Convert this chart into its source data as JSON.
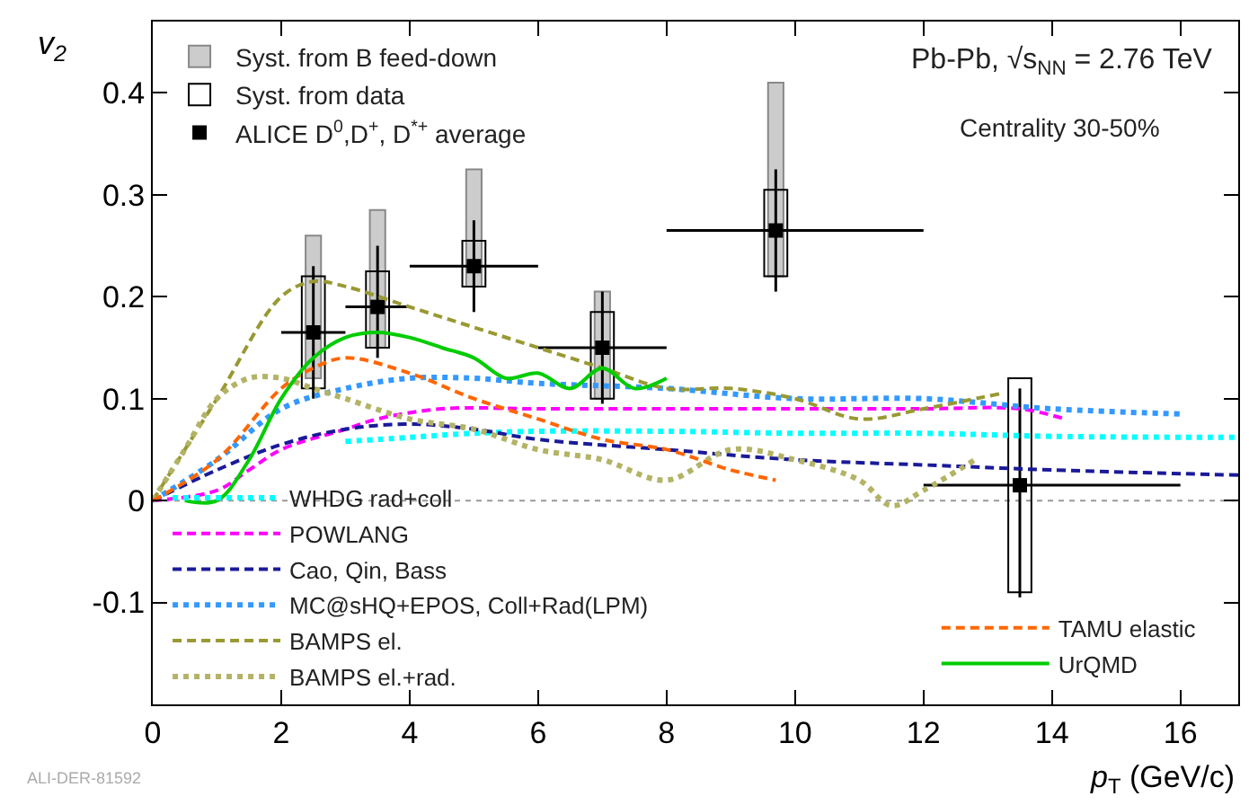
{
  "chart_data": {
    "type": "line",
    "xlabel": "p$_{T}$ (GeV/c)",
    "ylabel": "v$_{2}$",
    "xlim": [
      0,
      16.9
    ],
    "xticks": [
      0,
      2,
      4,
      6,
      8,
      10,
      12,
      14,
      16
    ],
    "ylim": [
      -0.2,
      0.47
    ],
    "yticks": [
      -0.1,
      0,
      0.1,
      0.2,
      0.3,
      0.4
    ],
    "grid": false,
    "legend": "left",
    "ref_lines": [
      {
        "axis": "y",
        "value": 0,
        "label": null,
        "color": "#999999",
        "line_style": "dotted"
      }
    ],
    "annotations": [
      "Pb-Pb, √s$_{NN}$ = 2.76 TeV",
      "Centrality 30-50%",
      "ALI-DER-81592"
    ],
    "series": [
      {
        "name": "Syst. from B feed-down",
        "type": "bar",
        "color": "#cccccc",
        "x": [
          2.5,
          3.5,
          5,
          7,
          9.7
        ],
        "base": [
          0.12,
          0.15,
          0.21,
          0.1,
          0.22
        ],
        "values": [
          0.14,
          0.135,
          0.115,
          0.105,
          0.19
        ]
      },
      {
        "name": "Syst. from data",
        "type": "bar",
        "color": "#000000",
        "x": [
          2.5,
          3.5,
          5,
          7,
          9.7,
          13.5
        ],
        "base": [
          0.11,
          0.15,
          0.21,
          0.1,
          0.22,
          -0.09
        ],
        "values": [
          0.11,
          0.075,
          0.045,
          0.085,
          0.085,
          0.21
        ]
      },
      {
        "name": "ALICE D$^{0}$,D$^{+}$, D$^{*+}$ average",
        "type": "scatter",
        "marker": "square",
        "color": "#000000",
        "x": [
          2.5,
          3.5,
          5,
          7,
          9.7,
          13.5
        ],
        "values": [
          0.165,
          0.19,
          0.23,
          0.15,
          0.265,
          0.015
        ],
        "errors": [
          [
            0.1,
            0.23
          ],
          [
            0.14,
            0.25
          ],
          [
            0.185,
            0.275
          ],
          [
            0.095,
            0.205
          ],
          [
            0.205,
            0.325
          ],
          [
            -0.095,
            0.11
          ]
        ],
        "xerrors": [
          [
            2,
            3
          ],
          [
            3,
            4
          ],
          [
            4,
            6
          ],
          [
            6,
            8
          ],
          [
            8,
            12
          ],
          [
            12,
            16
          ]
        ]
      },
      {
        "name": "WHDG rad+coll",
        "color": "#00ffff",
        "line_style": "dotted",
        "x": [
          3,
          4,
          5,
          6,
          8,
          10,
          12,
          14,
          16.9
        ],
        "values": [
          0.058,
          0.062,
          0.066,
          0.068,
          0.068,
          0.066,
          0.066,
          0.063,
          0.062
        ]
      },
      {
        "name": "POWLANG",
        "color": "#ff00ff",
        "line_style": "dashed",
        "x": [
          0,
          1,
          1.5,
          2,
          3,
          3.5,
          4.5,
          6,
          8,
          10,
          12,
          13.5,
          14.2
        ],
        "values": [
          0,
          0.01,
          0.03,
          0.05,
          0.07,
          0.08,
          0.09,
          0.09,
          0.09,
          0.09,
          0.09,
          0.09,
          0.08
        ]
      },
      {
        "name": "Cao, Qin, Bass",
        "color": "#1a1a99",
        "line_style": "dashed",
        "x": [
          0,
          1,
          2,
          3,
          4,
          5,
          6,
          8,
          10,
          12,
          14,
          16.9
        ],
        "values": [
          0,
          0.03,
          0.055,
          0.07,
          0.075,
          0.07,
          0.06,
          0.05,
          0.04,
          0.035,
          0.03,
          0.025
        ]
      },
      {
        "name": "MC@sHQ+EPOS, Coll+Rad(LPM)",
        "color": "#3399ff",
        "line_style": "dotted",
        "x": [
          0,
          1,
          2,
          3,
          4,
          5,
          6,
          8,
          10,
          12,
          14,
          16
        ],
        "values": [
          0,
          0.04,
          0.09,
          0.11,
          0.12,
          0.12,
          0.115,
          0.11,
          0.1,
          0.1,
          0.09,
          0.085
        ]
      },
      {
        "name": "BAMPS el.",
        "color": "#999933",
        "line_style": "dashed",
        "x": [
          0,
          1,
          2,
          2.5,
          3,
          4,
          5,
          6,
          7,
          8,
          9,
          10,
          11,
          12,
          13.2
        ],
        "values": [
          0,
          0.1,
          0.2,
          0.215,
          0.21,
          0.19,
          0.17,
          0.15,
          0.13,
          0.11,
          0.11,
          0.1,
          0.08,
          0.09,
          0.105
        ]
      },
      {
        "name": "BAMPS el.+rad.",
        "color": "#b3b366",
        "line_style": "dotted",
        "x": [
          0,
          0.5,
          1,
          1.5,
          2,
          2.5,
          3,
          4,
          5,
          6,
          7,
          8,
          9,
          10,
          11,
          11.5,
          12,
          12.8
        ],
        "values": [
          0,
          0.05,
          0.1,
          0.12,
          0.12,
          0.11,
          0.1,
          0.08,
          0.07,
          0.05,
          0.04,
          0.02,
          0.05,
          0.04,
          0.02,
          -0.005,
          0.01,
          0.04
        ]
      },
      {
        "name": "TAMU elastic",
        "color": "#ff6600",
        "line_style": "dashed",
        "x": [
          0,
          1,
          2,
          2.5,
          3,
          4,
          5,
          6,
          7,
          8,
          9,
          9.7
        ],
        "values": [
          0,
          0.04,
          0.11,
          0.13,
          0.14,
          0.125,
          0.1,
          0.08,
          0.06,
          0.05,
          0.03,
          0.02
        ]
      },
      {
        "name": "UrQMD",
        "color": "#00cc00",
        "line_style": "solid",
        "x": [
          0.5,
          1,
          1.5,
          2,
          2.5,
          3,
          3.5,
          4,
          4.5,
          5,
          5.5,
          6,
          6.5,
          7,
          7.5,
          8
        ],
        "values": [
          0,
          0,
          0.04,
          0.1,
          0.14,
          0.16,
          0.165,
          0.16,
          0.15,
          0.14,
          0.12,
          0.125,
          0.11,
          0.13,
          0.11,
          0.12
        ]
      }
    ]
  }
}
